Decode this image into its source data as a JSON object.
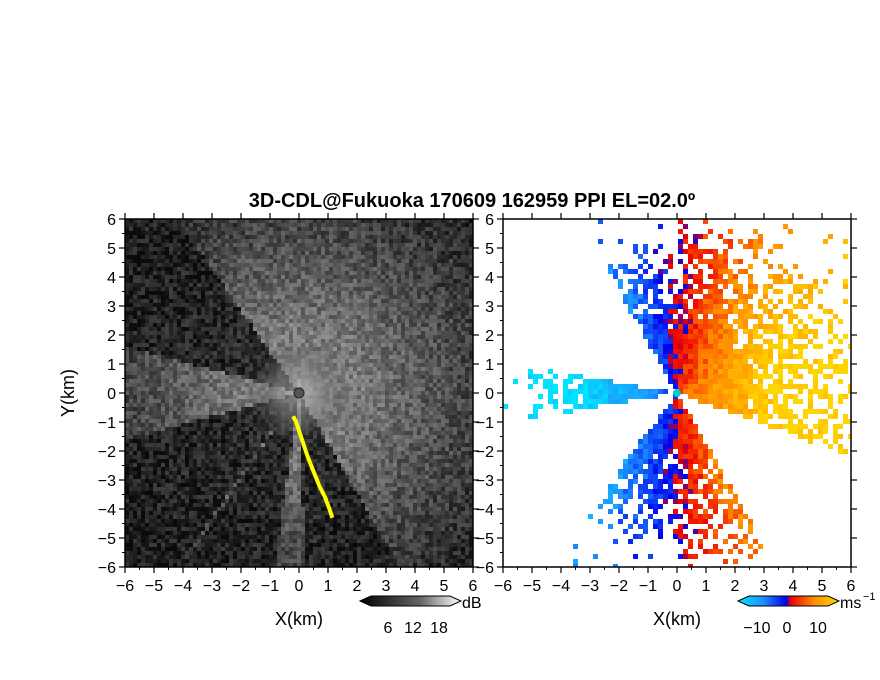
{
  "chart_data": [
    {
      "type": "heatmap",
      "title": "3D-CDL@Fukuoka 170609 162959 PPI EL=02.0º",
      "panel": "left",
      "xlabel": "X(km)",
      "ylabel": "Y(km)",
      "xlim": [
        -6,
        6
      ],
      "ylim": [
        -6,
        6
      ],
      "x_ticks": [
        "−6",
        "−5",
        "−4",
        "−3",
        "−2",
        "−1",
        "0",
        "1",
        "2",
        "3",
        "4",
        "5",
        "6"
      ],
      "y_ticks": [
        "6",
        "5",
        "4",
        "3",
        "2",
        "1",
        "0",
        "−1",
        "−2",
        "−3",
        "−4",
        "−5",
        "−6"
      ],
      "colorbar": {
        "unit": "dB",
        "tick_labels": [
          "6",
          "12",
          "18"
        ],
        "colors": [
          "#000000",
          "#555555",
          "#aaaaaa",
          "#ffffff",
          "#ffff00"
        ]
      },
      "highlight_color": "#ffff00"
    },
    {
      "type": "heatmap",
      "panel": "right",
      "xlabel": "X(km)",
      "xlim": [
        -6,
        6
      ],
      "ylim": [
        -6,
        6
      ],
      "x_ticks": [
        "−6",
        "−5",
        "−4",
        "−3",
        "−2",
        "−1",
        "0",
        "1",
        "2",
        "3",
        "4",
        "5",
        "6"
      ],
      "y_ticks": [
        "6",
        "5",
        "4",
        "3",
        "2",
        "1",
        "0",
        "−1",
        "−2",
        "−3",
        "−4",
        "−5",
        "−6"
      ],
      "colorbar": {
        "unit": "ms",
        "unit_superscript": "−1",
        "tick_labels": [
          "−10",
          "0",
          "10"
        ],
        "colors": [
          "#00ffff",
          "#1e90ff",
          "#0000ff",
          "#ff0000",
          "#ff8c00",
          "#ffff00"
        ]
      }
    }
  ]
}
